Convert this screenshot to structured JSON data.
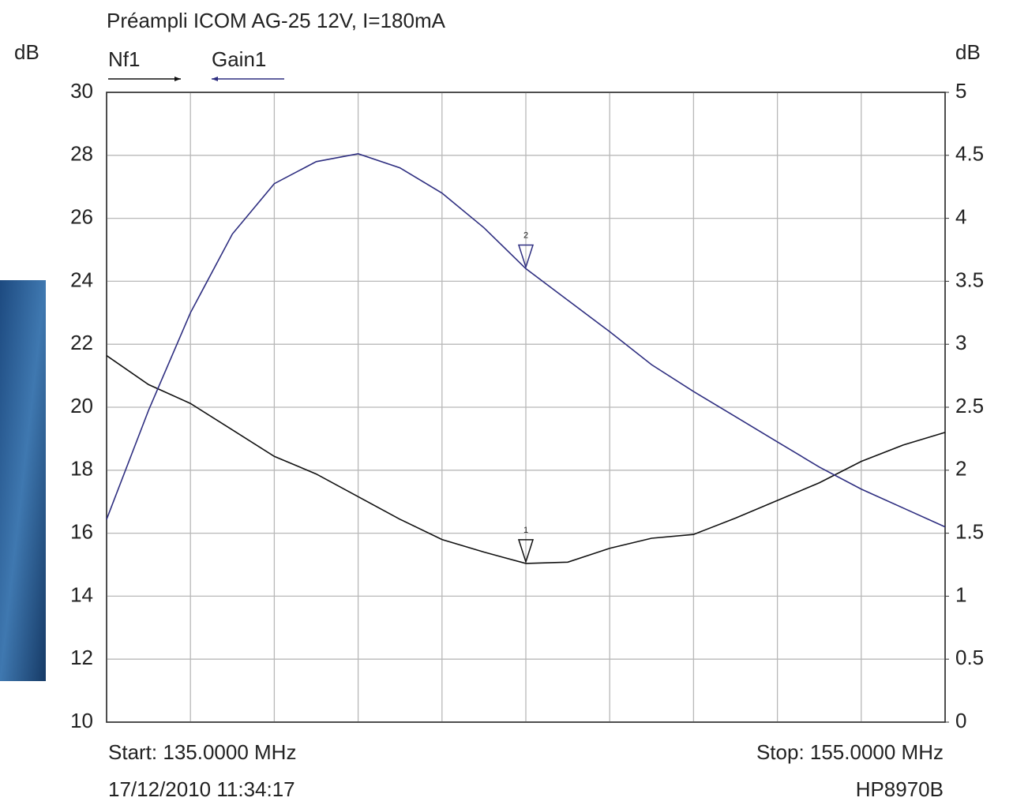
{
  "chart_data": {
    "type": "line",
    "title": "Préampli ICOM AG-25  12V, I=180mA",
    "y_label": "dB",
    "y2_label": "dB",
    "start_label": "Start: 135.0000 MHz",
    "stop_label": "Stop: 155.0000 MHz",
    "timestamp": "17/12/2010 11:34:17",
    "instrument": "HP8970B",
    "x": [
      135,
      136,
      137,
      138,
      139,
      140,
      141,
      142,
      143,
      144,
      145,
      146,
      147,
      148,
      149,
      150,
      151,
      152,
      153,
      154,
      155
    ],
    "xlim": [
      135,
      155
    ],
    "xticks": [
      135,
      137,
      139,
      141,
      143,
      145,
      147,
      149,
      151,
      153,
      155
    ],
    "ylim": [
      10,
      30
    ],
    "yticks": [
      10,
      12,
      14,
      16,
      18,
      20,
      22,
      24,
      26,
      28,
      30
    ],
    "y2lim": [
      0,
      5
    ],
    "y2ticks": [
      0,
      0.5,
      1,
      1.5,
      2,
      2.5,
      3,
      3.5,
      4,
      4.5,
      5
    ],
    "grid": true,
    "series": [
      {
        "name": "Nf1",
        "color": "#111111",
        "axis": "y2",
        "values": [
          2.91,
          2.68,
          2.53,
          2.32,
          2.11,
          1.97,
          1.79,
          1.61,
          1.45,
          1.35,
          1.26,
          1.27,
          1.38,
          1.46,
          1.49,
          1.62,
          1.76,
          1.9,
          2.07,
          2.2,
          2.3
        ]
      },
      {
        "name": "Gain1",
        "color": "#2e2e80",
        "axis": "y",
        "values": [
          16.44,
          19.9,
          23.0,
          25.5,
          27.1,
          27.8,
          28.05,
          27.6,
          26.8,
          25.7,
          24.4,
          23.4,
          22.4,
          21.35,
          20.5,
          19.7,
          18.9,
          18.1,
          17.4,
          16.8,
          16.2
        ]
      }
    ],
    "markers": [
      {
        "label": "1",
        "series": 0,
        "index": 10
      },
      {
        "label": "2",
        "series": 1,
        "index": 10
      }
    ]
  }
}
